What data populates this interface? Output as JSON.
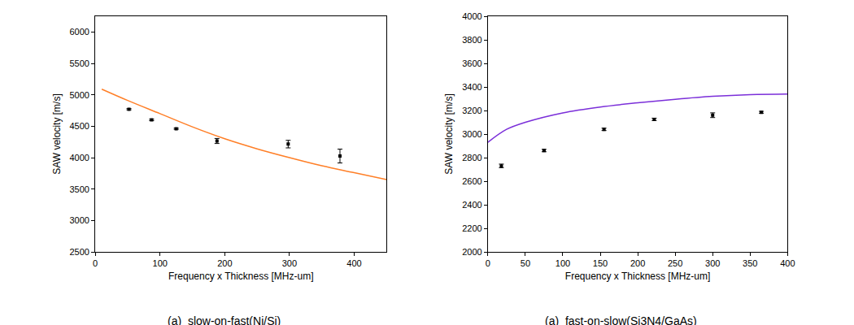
{
  "chart_data": [
    {
      "type": "scatter",
      "title": "(a)  slow-on-fast(Ni/Si)",
      "x_label": "Frequency x Thickness [MHz-um]",
      "y_label": "SAW velocity [m/s]",
      "xlim": [
        0,
        450
      ],
      "xticks": [
        0,
        100,
        200,
        300,
        400
      ],
      "ylim": [
        2500,
        6250
      ],
      "yticks": [
        2500,
        3000,
        3500,
        4000,
        4500,
        5000,
        5500,
        6000
      ],
      "grid": false,
      "series": [
        {
          "type": "line",
          "color": "#ff7f27",
          "line_style": "solid",
          "x": [
            10,
            50,
            100,
            150,
            200,
            250,
            300,
            350,
            400,
            450
          ],
          "values": [
            5090,
            4910,
            4700,
            4490,
            4300,
            4140,
            4000,
            3870,
            3760,
            3650
          ]
        },
        {
          "type": "scatter",
          "color": "#000000",
          "marker": "square",
          "x": [
            52,
            87,
            125,
            188,
            298,
            378
          ],
          "values": [
            4770,
            4600,
            4460,
            4265,
            4215,
            4025
          ],
          "errors": [
            10,
            12,
            10,
            40,
            60,
            110
          ]
        }
      ]
    },
    {
      "type": "scatter",
      "title": "(a)  fast-on-slow(Si3N4/GaAs)",
      "x_label": "Frequency x Thickness [MHz-um]",
      "y_label": "SAW velocity [m/s]",
      "xlim": [
        0,
        400
      ],
      "xticks": [
        0,
        50,
        100,
        150,
        200,
        250,
        300,
        350,
        400
      ],
      "ylim": [
        2000,
        4000
      ],
      "yticks": [
        2000,
        2200,
        2400,
        2600,
        2800,
        3000,
        3200,
        3400,
        3600,
        3800,
        4000
      ],
      "grid": false,
      "series": [
        {
          "type": "line",
          "color": "#7b2fd9",
          "line_style": "solid",
          "x": [
            0,
            25,
            50,
            100,
            150,
            200,
            250,
            300,
            350,
            400
          ],
          "values": [
            2930,
            3040,
            3100,
            3180,
            3230,
            3265,
            3295,
            3320,
            3335,
            3340
          ]
        },
        {
          "type": "scatter",
          "color": "#000000",
          "marker": "square",
          "x": [
            18,
            75,
            155,
            222,
            300,
            365
          ],
          "values": [
            2730,
            2860,
            3040,
            3125,
            3160,
            3185
          ],
          "errors": [
            15,
            10,
            10,
            10,
            20,
            8
          ]
        }
      ]
    }
  ]
}
